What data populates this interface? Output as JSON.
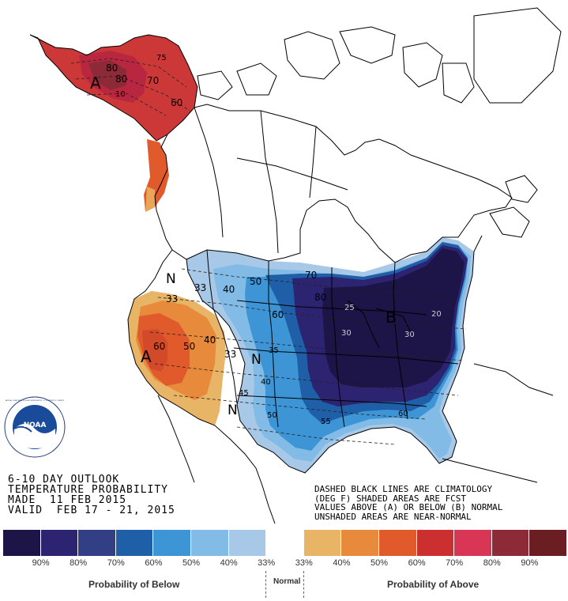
{
  "title": {
    "line1": "6-10 DAY OUTLOOK",
    "line2": "TEMPERATURE PROBABILITY",
    "line3": "MADE  11 FEB 2015",
    "line4": "VALID  FEB 17 - 21, 2015"
  },
  "notes": {
    "line1": "DASHED BLACK LINES ARE CLIMATOLOGY",
    "line2": "(DEG F) SHADED AREAS ARE FCST",
    "line3": "VALUES ABOVE (A) OR BELOW (B) NORMAL",
    "line4": "UNSHADED AREAS ARE NEAR-NORMAL"
  },
  "logo": {
    "text": "NOAA",
    "ring_text": "NATIONAL OCEANIC AND ATMOSPHERIC ADMINISTRATION · U.S. DEPARTMENT OF COMMERCE"
  },
  "map_labels": {
    "above_alaska": "A",
    "above_west": "A",
    "below_east": "B",
    "normal_nw": "N",
    "normal_center": "N",
    "normal_sw": "N"
  },
  "contour_labels": {
    "ak_80a": "80",
    "ak_80b": "80",
    "ak_70": "70",
    "ak_75": "75",
    "ak_60": "60",
    "ak_10": "10",
    "w_33": "33",
    "w_40": "40",
    "w_50": "50",
    "w_60": "60",
    "w_33b": "33",
    "w_40b": "40",
    "c_33": "33",
    "c_40": "40",
    "c_50": "50",
    "c_60": "60",
    "c_70": "70",
    "c_80": "80",
    "c_35": "35",
    "c_40b": "40",
    "c_45": "45",
    "c_50b": "50",
    "c_55": "55",
    "c_60b": "60",
    "e_25": "25",
    "e_30": "30",
    "e_20": "20",
    "e_30b": "30"
  },
  "legend": {
    "colors": [
      "#1d1447",
      "#2c2470",
      "#333f85",
      "#1f5fa8",
      "#3d95d6",
      "#82bbe6",
      "#a8c8e8",
      "#ffffff",
      "#e8b466",
      "#e88a3c",
      "#e05a2b",
      "#cc2f2f",
      "#d93655",
      "#8c2a37",
      "#6b1e22"
    ],
    "labels": [
      "90%",
      "80%",
      "70%",
      "60%",
      "50%",
      "40%",
      "33%",
      "33%",
      "40%",
      "50%",
      "60%",
      "70%",
      "80%",
      "90%"
    ],
    "below_caption": "Probability of Below",
    "normal_caption": "Normal",
    "above_caption": "Probability of Above"
  }
}
